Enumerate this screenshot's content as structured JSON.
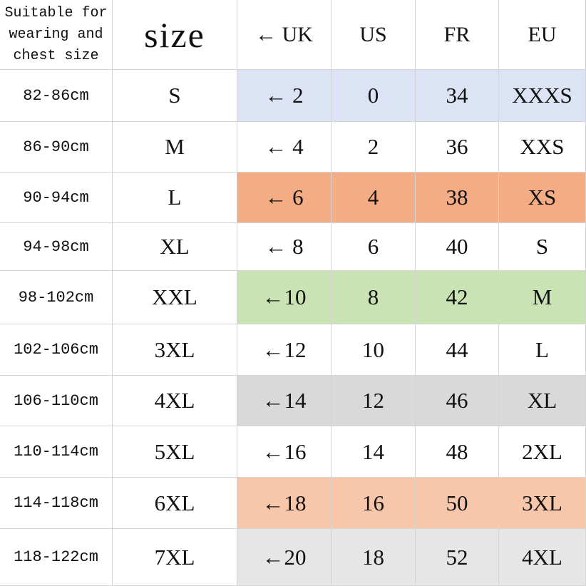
{
  "table": {
    "header": [
      [
        "Suitable for",
        "wearing and",
        "chest size"
      ],
      "size",
      "← UK",
      "US",
      "FR",
      "EU"
    ],
    "rows": [
      {
        "cells": [
          "82-86cm",
          "S",
          "← 2",
          "0",
          "34",
          "XXXS"
        ],
        "highlight": "#dce3f5"
      },
      {
        "cells": [
          "86-90cm",
          "M",
          "← 4",
          "2",
          "36",
          "XXS"
        ]
      },
      {
        "cells": [
          "90-94cm",
          "L",
          "← 6",
          "4",
          "38",
          "XS"
        ],
        "highlight": "#f4ac84"
      },
      {
        "cells": [
          "94-98cm",
          "XL",
          "← 8",
          "6",
          "40",
          "S"
        ]
      },
      {
        "cells": [
          "98-102cm",
          "XXL",
          "←10",
          "8",
          "42",
          "M"
        ],
        "highlight": "#c9e3b4"
      },
      {
        "cells": [
          "102-106cm",
          "3XL",
          "←12",
          "10",
          "44",
          "L"
        ]
      },
      {
        "cells": [
          "106-110cm",
          "4XL",
          "←14",
          "12",
          "46",
          "XL"
        ],
        "highlight": "#d9d9d9"
      },
      {
        "cells": [
          "110-114cm",
          "5XL",
          "←16",
          "14",
          "48",
          "2XL"
        ]
      },
      {
        "cells": [
          "114-118cm",
          "6XL",
          "←18",
          "16",
          "50",
          "3XL"
        ],
        "highlight": "#f8c6a8"
      },
      {
        "cells": [
          "118-122cm",
          "7XL",
          "←20",
          "18",
          "52",
          "4XL"
        ],
        "highlight": "#e6e6e6"
      }
    ]
  }
}
